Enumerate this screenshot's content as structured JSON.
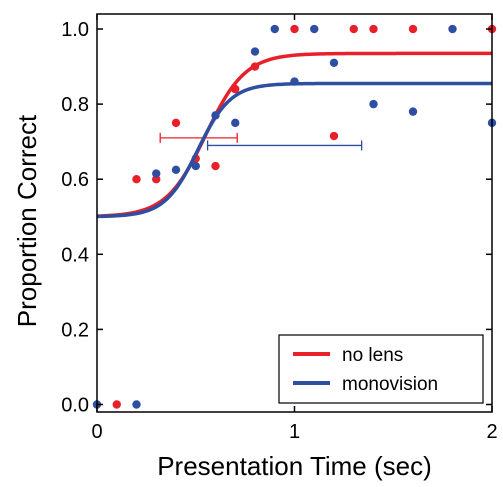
{
  "chart_data": {
    "type": "scatter",
    "xlabel": "Presentation Time (sec)",
    "ylabel": "Proportion Correct",
    "xlim": [
      0,
      2
    ],
    "ylim": [
      -0.02,
      1.04
    ],
    "x_ticks": [
      0,
      1,
      2
    ],
    "y_ticks": [
      0.0,
      0.2,
      0.4,
      0.6,
      0.8,
      1.0
    ],
    "x_tick_labels": [
      "0",
      "1",
      "2"
    ],
    "y_tick_labels": [
      "0.0",
      "0.2",
      "0.4",
      "0.6",
      "0.8",
      "1.0"
    ],
    "grid": false,
    "legend_position": "bottom-right",
    "series": [
      {
        "name": "no lens",
        "color": "#e8202a",
        "points": [
          {
            "x": 0.1,
            "y": 0.0
          },
          {
            "x": 0.2,
            "y": 0.6
          },
          {
            "x": 0.3,
            "y": 0.6
          },
          {
            "x": 0.4,
            "y": 0.75
          },
          {
            "x": 0.5,
            "y": 0.655
          },
          {
            "x": 0.6,
            "y": 0.635
          },
          {
            "x": 0.7,
            "y": 0.84
          },
          {
            "x": 0.8,
            "y": 0.9
          },
          {
            "x": 1.0,
            "y": 1.0
          },
          {
            "x": 1.2,
            "y": 0.715
          },
          {
            "x": 1.3,
            "y": 1.0
          },
          {
            "x": 1.4,
            "y": 1.0
          },
          {
            "x": 1.6,
            "y": 1.0
          },
          {
            "x": 2.0,
            "y": 1.0
          }
        ],
        "fit": {
          "lower": 0.5,
          "upper": 0.935,
          "midpoint": 0.55,
          "slope": 10
        },
        "error_bar": {
          "y": 0.71,
          "x_low": 0.32,
          "x_high": 0.71
        }
      },
      {
        "name": "monovision",
        "color": "#2e4ea1",
        "points": [
          {
            "x": 0.0,
            "y": 0.0
          },
          {
            "x": 0.2,
            "y": 0.0
          },
          {
            "x": 0.3,
            "y": 0.615
          },
          {
            "x": 0.4,
            "y": 0.625
          },
          {
            "x": 0.5,
            "y": 0.635
          },
          {
            "x": 0.6,
            "y": 0.77
          },
          {
            "x": 0.7,
            "y": 0.75
          },
          {
            "x": 0.8,
            "y": 0.94
          },
          {
            "x": 0.9,
            "y": 1.0
          },
          {
            "x": 1.0,
            "y": 0.86
          },
          {
            "x": 1.1,
            "y": 1.0
          },
          {
            "x": 1.2,
            "y": 0.91
          },
          {
            "x": 1.4,
            "y": 0.8
          },
          {
            "x": 1.6,
            "y": 0.78
          },
          {
            "x": 1.8,
            "y": 1.0
          },
          {
            "x": 2.0,
            "y": 0.75
          }
        ],
        "fit": {
          "lower": 0.5,
          "upper": 0.855,
          "midpoint": 0.51,
          "slope": 12
        },
        "error_bar": {
          "y": 0.69,
          "x_low": 0.56,
          "x_high": 1.34
        }
      }
    ]
  }
}
